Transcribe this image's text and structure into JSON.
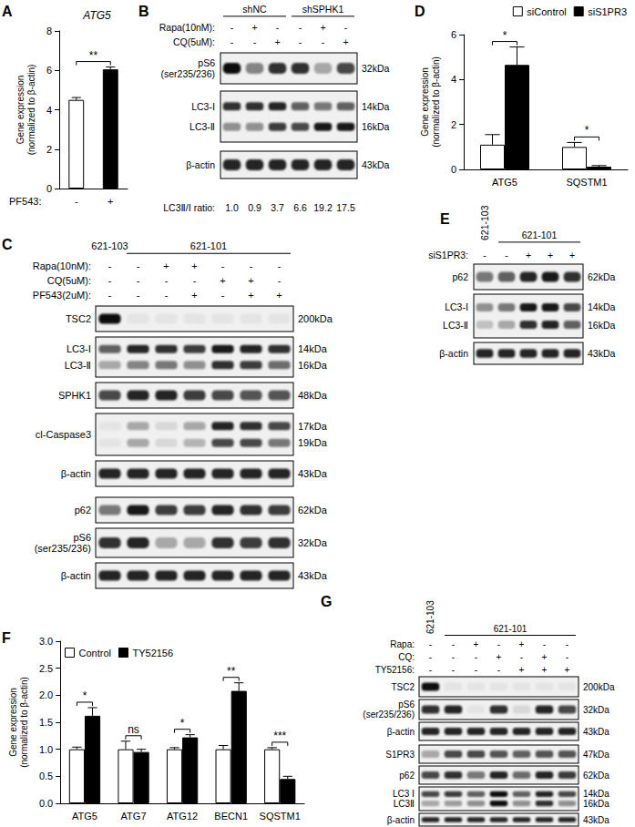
{
  "chart_data": [
    {
      "panel": "A",
      "type": "bar",
      "title": "ATG5",
      "x_label": "PF543:",
      "y_label": [
        "Gene expression",
        "(normalized to β-actin)"
      ],
      "categories": [
        "-",
        "+"
      ],
      "values": [
        4.5,
        6.05
      ],
      "errors": [
        0.12,
        0.12
      ],
      "colors": [
        "#ffffff",
        "#000000"
      ],
      "significance": [
        "**"
      ],
      "ylim": [
        0,
        8
      ],
      "yticks": [
        0,
        2,
        4,
        6,
        8
      ],
      "grid": false
    },
    {
      "panel": "D",
      "type": "bar",
      "y_label": [
        "Gene expression",
        "(normalized to β-actin)"
      ],
      "categories": [
        "ATG5",
        "SQSTM1"
      ],
      "series": [
        {
          "name": "siControl",
          "color": "#ffffff",
          "values": [
            1.1,
            1.0
          ],
          "errors": [
            0.45,
            0.2
          ]
        },
        {
          "name": "siS1PR3",
          "color": "#000000",
          "values": [
            4.65,
            0.12
          ],
          "errors": [
            0.8,
            0.05
          ]
        }
      ],
      "significance": [
        "*",
        "*"
      ],
      "ylim": [
        0,
        6
      ],
      "yticks": [
        0,
        2,
        4,
        6
      ],
      "legend": "top-right",
      "grid": false
    },
    {
      "panel": "F",
      "type": "bar",
      "y_label": [
        "Gene expression",
        "(normalized to β-actin)"
      ],
      "categories": [
        "ATG5",
        "ATG7",
        "ATG12",
        "BECN1",
        "SQSTM1"
      ],
      "series": [
        {
          "name": "Control",
          "color": "#ffffff",
          "values": [
            1.0,
            1.0,
            1.0,
            1.0,
            1.0
          ],
          "errors": [
            0.04,
            0.15,
            0.03,
            0.07,
            0.03
          ]
        },
        {
          "name": "TY52156",
          "color": "#000000",
          "values": [
            1.62,
            0.95,
            1.22,
            2.08,
            0.45
          ],
          "errors": [
            0.15,
            0.05,
            0.05,
            0.15,
            0.05
          ]
        }
      ],
      "significance": [
        "*",
        "ns",
        "*",
        "**",
        "***"
      ],
      "ylim": [
        0,
        3
      ],
      "yticks": [
        {
          "value": 0,
          "label": "0.0"
        },
        {
          "value": 0.5,
          "label": "0.5"
        },
        {
          "value": 1,
          "label": "1.0"
        },
        {
          "value": 1.5,
          "label": "1.5"
        },
        {
          "value": 2,
          "label": "2.0"
        },
        {
          "value": 2.5,
          "label": "2.5"
        },
        {
          "value": 3,
          "label": "3.0"
        }
      ],
      "legend": "top-left",
      "grid": false
    }
  ],
  "blots": [
    {
      "panel": "B",
      "groups": [
        {
          "label": "shNC",
          "lanes": 3
        },
        {
          "label": "shSPHK1",
          "lanes": 3
        }
      ],
      "treatments": [
        {
          "label": "Rapa(10nM):",
          "marks": [
            "-",
            "+",
            "-",
            "-",
            "+",
            "-"
          ]
        },
        {
          "label": "CQ(5uM):",
          "marks": [
            "-",
            "-",
            "+",
            "-",
            "-",
            "+"
          ]
        }
      ],
      "rows": [
        {
          "labels": [
            "pS6",
            "(ser235/236)"
          ],
          "sizes": [
            "32kDa"
          ],
          "bands": [
            [
              0.95,
              0.45,
              0.8,
              0.8,
              0.3,
              0.7
            ]
          ]
        },
        {
          "labels": [
            "LC3-Ⅰ",
            "LC3-Ⅱ"
          ],
          "sizes": [
            "14kDa",
            "16kDa"
          ],
          "bands": [
            [
              0.8,
              0.8,
              0.85,
              0.6,
              0.5,
              0.6
            ],
            [
              0.4,
              0.4,
              0.75,
              0.7,
              0.9,
              0.9
            ]
          ]
        },
        {
          "labels": [
            "β-actin"
          ],
          "sizes": [
            "43kDa"
          ],
          "bands": [
            [
              0.85,
              0.85,
              0.85,
              0.85,
              0.85,
              0.85
            ]
          ]
        }
      ],
      "ratio": {
        "label": "LC3Ⅱ/Ⅰ ratio:",
        "values": [
          "1.0",
          "0.9",
          "3.7",
          "6.6",
          "19.2",
          "17.5"
        ]
      }
    },
    {
      "panel": "C",
      "groups": [
        {
          "label": "621-103",
          "lanes": 1
        },
        {
          "label": "621-101",
          "lanes": 6
        }
      ],
      "treatments": [
        {
          "label": "Rapa(10nM):",
          "marks": [
            "-",
            "-",
            "+",
            "+",
            "-",
            "-",
            "-"
          ]
        },
        {
          "label": "CQ(5uM):",
          "marks": [
            "-",
            "-",
            "-",
            "-",
            "+",
            "+",
            "-"
          ]
        },
        {
          "label": "PF543(2uM):",
          "marks": [
            "-",
            "-",
            "-",
            "+",
            "-",
            "+",
            "+"
          ]
        }
      ],
      "rows": [
        {
          "labels": [
            "TSC2"
          ],
          "sizes": [
            "200kDa"
          ],
          "bands": [
            [
              0.95,
              0.05,
              0.05,
              0.05,
              0.05,
              0.05,
              0.05
            ]
          ]
        },
        {
          "labels": [
            "LC3-Ⅰ",
            "LC3-Ⅱ"
          ],
          "sizes": [
            "14kDa",
            "16kDa"
          ],
          "bands": [
            [
              0.6,
              0.85,
              0.8,
              0.75,
              0.9,
              0.85,
              0.8
            ],
            [
              0.3,
              0.45,
              0.5,
              0.4,
              0.8,
              0.75,
              0.55
            ]
          ]
        },
        {
          "labels": [
            "SPHK1"
          ],
          "sizes": [
            "48kDa"
          ],
          "bands": [
            [
              0.7,
              0.85,
              0.85,
              0.75,
              0.7,
              0.65,
              0.65
            ]
          ]
        },
        {
          "labels": [
            "cl-Caspase3"
          ],
          "sizes": [
            "17kDa",
            "19kDa"
          ],
          "bands": [
            [
              0.05,
              0.3,
              0.1,
              0.3,
              0.85,
              0.8,
              0.7
            ],
            [
              0.05,
              0.3,
              0.1,
              0.25,
              0.7,
              0.7,
              0.5
            ]
          ]
        },
        {
          "labels": [
            "β-actin"
          ],
          "sizes": [
            "43kDa"
          ],
          "bands": [
            [
              0.85,
              0.85,
              0.85,
              0.85,
              0.85,
              0.85,
              0.85
            ]
          ]
        },
        {
          "labels": [
            "p62"
          ],
          "sizes": [
            "62kDa"
          ],
          "bands": [
            [
              0.5,
              0.9,
              0.75,
              0.75,
              0.85,
              0.8,
              0.75
            ]
          ]
        },
        {
          "labels": [
            "pS6",
            "(ser235/236)"
          ],
          "sizes": [
            "32kDa"
          ],
          "bands": [
            [
              0.8,
              0.85,
              0.3,
              0.3,
              0.8,
              0.75,
              0.8
            ]
          ]
        },
        {
          "labels": [
            "β-actin"
          ],
          "sizes": [
            "43kDa"
          ],
          "bands": [
            [
              0.85,
              0.85,
              0.85,
              0.85,
              0.85,
              0.85,
              0.85
            ]
          ]
        }
      ]
    },
    {
      "panel": "E",
      "groups": [
        {
          "label": "621-103",
          "lanes": 1
        },
        {
          "label": "621-101",
          "lanes": 4
        }
      ],
      "treatments": [
        {
          "label": "siS1PR3:",
          "marks": [
            "-",
            "-",
            "+",
            "+",
            "+"
          ]
        }
      ],
      "rows": [
        {
          "labels": [
            "p62"
          ],
          "sizes": [
            "62kDa"
          ],
          "bands": [
            [
              0.5,
              0.6,
              0.85,
              0.9,
              0.8
            ]
          ]
        },
        {
          "labels": [
            "LC3-Ⅰ",
            "LC3-Ⅱ"
          ],
          "sizes": [
            "14kDa",
            "16kDa"
          ],
          "bands": [
            [
              0.4,
              0.5,
              0.9,
              0.9,
              0.7
            ],
            [
              0.2,
              0.3,
              0.8,
              0.85,
              0.6
            ]
          ]
        },
        {
          "labels": [
            "β-actin"
          ],
          "sizes": [
            "43kDa"
          ],
          "bands": [
            [
              0.85,
              0.85,
              0.85,
              0.85,
              0.85
            ]
          ]
        }
      ]
    },
    {
      "panel": "G",
      "groups": [
        {
          "label": "621-103",
          "lanes": 1
        },
        {
          "label": "621-101",
          "lanes": 6
        }
      ],
      "treatments": [
        {
          "label": "Rapa:",
          "marks": [
            "-",
            "-",
            "+",
            "-",
            "+",
            "-",
            "-"
          ]
        },
        {
          "label": "CQ:",
          "marks": [
            "-",
            "-",
            "-",
            "+",
            "-",
            "+",
            "-"
          ]
        },
        {
          "label": "TY52156:",
          "marks": [
            "-",
            "-",
            "-",
            "-",
            "+",
            "+",
            "+"
          ]
        }
      ],
      "rows": [
        {
          "labels": [
            "TSC2"
          ],
          "sizes": [
            "200kDa"
          ],
          "bands": [
            [
              0.95,
              0.05,
              0.05,
              0.05,
              0.05,
              0.05,
              0.05
            ]
          ]
        },
        {
          "labels": [
            "pS6",
            "(ser235/236)"
          ],
          "sizes": [
            "32kDa"
          ],
          "bands": [
            [
              0.8,
              0.85,
              0.05,
              0.8,
              0.1,
              0.85,
              0.7
            ]
          ]
        },
        {
          "labels": [
            "β-actin"
          ],
          "sizes": [
            "43kDa"
          ],
          "bands": [
            [
              0.85,
              0.85,
              0.85,
              0.85,
              0.85,
              0.85,
              0.85
            ]
          ]
        },
        {
          "labels": [
            "S1PR3"
          ],
          "sizes": [
            "47kDa"
          ],
          "bands": [
            [
              0.3,
              0.7,
              0.7,
              0.65,
              0.6,
              0.65,
              0.65
            ]
          ]
        },
        {
          "labels": [
            "p62"
          ],
          "sizes": [
            "62kDa"
          ],
          "bands": [
            [
              0.7,
              0.8,
              0.5,
              0.85,
              0.55,
              0.85,
              0.75
            ]
          ]
        },
        {
          "labels": [
            "LC3 Ⅰ",
            "LC3Ⅱ"
          ],
          "sizes": [
            "14kDa",
            "16kDa"
          ],
          "bands": [
            [
              0.7,
              0.75,
              0.6,
              0.95,
              0.6,
              0.85,
              0.7
            ],
            [
              0.3,
              0.35,
              0.4,
              0.95,
              0.4,
              0.8,
              0.4
            ]
          ]
        },
        {
          "labels": [
            "β-actin"
          ],
          "sizes": [
            "43kDa"
          ],
          "bands": [
            [
              0.85,
              0.85,
              0.85,
              0.85,
              0.85,
              0.85,
              0.85
            ]
          ]
        }
      ]
    }
  ]
}
